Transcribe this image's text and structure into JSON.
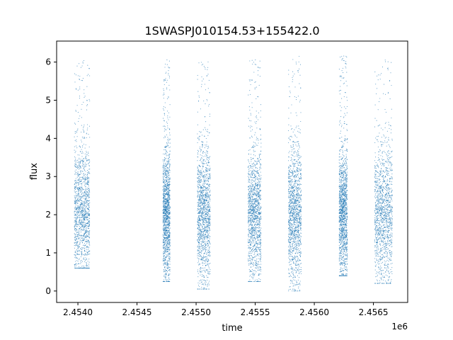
{
  "chart_data": {
    "type": "scatter",
    "title": "1SWASPJ010154.53+155422.0",
    "xlabel": "time",
    "ylabel": "flux",
    "x_offset_label": "1e6",
    "xlim": [
      2.45382,
      2.45679
    ],
    "ylim": [
      -0.3,
      6.55
    ],
    "x_ticks": [
      2.454,
      2.4545,
      2.455,
      2.4555,
      2.456,
      2.4565
    ],
    "x_tick_labels": [
      "2.4540",
      "2.4545",
      "2.4550",
      "2.4555",
      "2.4560",
      "2.4565"
    ],
    "y_ticks": [
      0,
      1,
      2,
      3,
      4,
      5,
      6
    ],
    "y_tick_labels": [
      "0",
      "1",
      "2",
      "3",
      "4",
      "5",
      "6"
    ],
    "grid": false,
    "legend": "none",
    "color": "#1f77b4",
    "observing_seasons": [
      {
        "x_range": [
          2.45397,
          2.4541
        ],
        "y_range": [
          0.6,
          6.05
        ],
        "median": 2.0
      },
      {
        "x_range": [
          2.45472,
          2.45478
        ],
        "y_range": [
          0.25,
          6.1
        ],
        "median": 2.0
      },
      {
        "x_range": [
          2.45501,
          2.45512
        ],
        "y_range": [
          0.05,
          6.05
        ],
        "median": 2.0
      },
      {
        "x_range": [
          2.45544,
          2.45555
        ],
        "y_range": [
          0.25,
          6.1
        ],
        "median": 2.0
      },
      {
        "x_range": [
          2.45578,
          2.45589
        ],
        "y_range": [
          0.0,
          6.2
        ],
        "median": 2.0
      },
      {
        "x_range": [
          2.45621,
          2.45628
        ],
        "y_range": [
          0.4,
          6.2
        ],
        "median": 2.0
      },
      {
        "x_range": [
          2.45651,
          2.45666
        ],
        "y_range": [
          0.2,
          6.25
        ],
        "median": 2.0
      }
    ]
  }
}
